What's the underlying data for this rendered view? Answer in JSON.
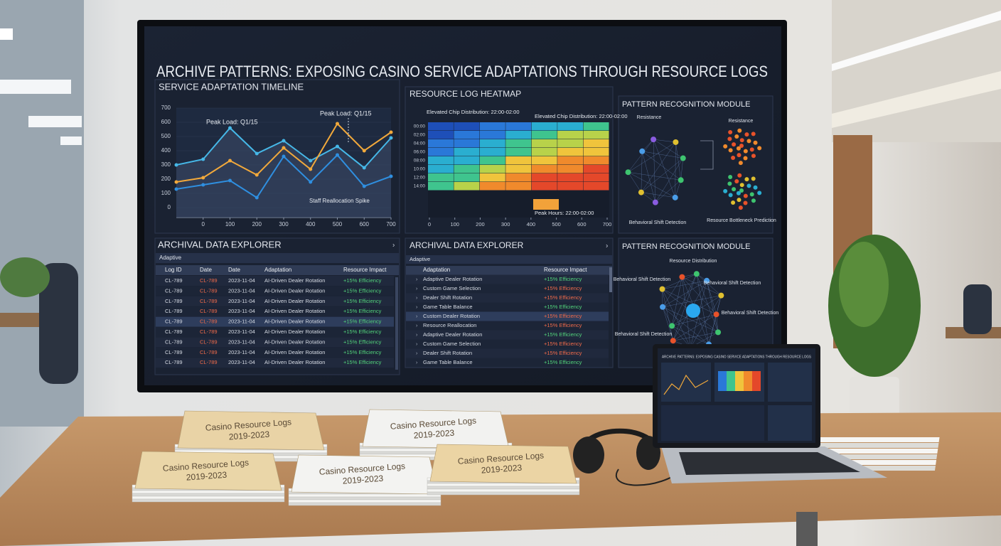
{
  "screen": {
    "title": "ARCHIVE PATTERNS: EXPOSING CASINO SERVICE ADAPTATIONS THROUGH RESOURCE LOGS",
    "timeline": {
      "type": "line",
      "title": "SERVICE ADAPTATION TIMELINE",
      "x": [
        -100,
        0,
        100,
        200,
        300,
        400,
        500,
        600,
        700
      ],
      "xlim": [
        -100,
        700
      ],
      "xticks": [
        0,
        100,
        200,
        300,
        400,
        500,
        600,
        700
      ],
      "ylim": [
        0,
        700
      ],
      "yticks": [
        0,
        100,
        200,
        300,
        400,
        500,
        600,
        700
      ],
      "series": [
        {
          "color": "#46b8e8",
          "values": [
            300,
            340,
            560,
            380,
            470,
            330,
            430,
            280,
            490
          ]
        },
        {
          "color": "#f2a93b",
          "values": [
            180,
            210,
            330,
            230,
            420,
            270,
            590,
            400,
            530
          ]
        },
        {
          "color": "#2f8fe0",
          "values": [
            130,
            160,
            190,
            70,
            360,
            180,
            370,
            150,
            220
          ]
        }
      ],
      "annotations": [
        "Peak Load: Q1/15",
        "Peak Load: Q1/15",
        "Staff Reallocation Spike"
      ]
    },
    "heatmap": {
      "type": "heatmap",
      "title": "RESOURCE LOG HEATMAP",
      "annotations": [
        "Elevated Chip Distribution: 22:00-02:00",
        "Elevated Chip Distribution: 22:00-02:00"
      ],
      "callout": "Peak Hours: 22:00-02:00",
      "colors": [
        "#1e4fb8",
        "#2a78d8",
        "#2aaed0",
        "#3fc48e",
        "#b8d24a",
        "#f0c43c",
        "#f08a2c",
        "#e4482a"
      ],
      "rows": [
        "00:00",
        "02:00",
        "04:00",
        "06:00",
        "08:00",
        "10:00",
        "12:00",
        "14:00"
      ],
      "xlim": [
        0,
        700
      ],
      "xticks": [
        0,
        100,
        200,
        300,
        400,
        500,
        600,
        700
      ],
      "values": [
        [
          0,
          0,
          1,
          1,
          2,
          2,
          3
        ],
        [
          0,
          1,
          1,
          2,
          3,
          4,
          4
        ],
        [
          1,
          1,
          2,
          3,
          4,
          4,
          5
        ],
        [
          1,
          2,
          2,
          3,
          4,
          5,
          5
        ],
        [
          2,
          2,
          3,
          5,
          5,
          6,
          6
        ],
        [
          2,
          3,
          4,
          5,
          6,
          6,
          7
        ],
        [
          3,
          3,
          5,
          6,
          7,
          7,
          7
        ],
        [
          3,
          4,
          6,
          6,
          7,
          7,
          7
        ]
      ]
    },
    "pattern": {
      "title": "PATTERN RECOGNITION MODULE",
      "labels": [
        "Resistance",
        "Resistance",
        "Behavioral Shift Detection",
        "Resource Bottleneck Prediction"
      ]
    },
    "explorer1": {
      "title": "ARCHIVAL DATA EXPLORER",
      "subtitle": "Adaptive",
      "headers": [
        "Log ID",
        "Date",
        "Date",
        "Adaptation",
        "Resource Impact"
      ],
      "rows": [
        [
          "CL-789",
          "CL-789",
          "2023-11-04",
          "AI-Driven Dealer Rotation",
          "+15% Efficiency"
        ],
        [
          "CL-789",
          "CL-789",
          "2023-11-04",
          "AI-Driven Dealer Rotation",
          "+15% Efficiency"
        ],
        [
          "CL-789",
          "CL-789",
          "2023-11-04",
          "AI-Driven Dealer Rotation",
          "+15% Efficiency"
        ],
        [
          "CL-789",
          "CL-789",
          "2023-11-04",
          "AI-Driven Dealer Rotation",
          "+15% Efficiency"
        ],
        [
          "CL-789",
          "CL-789",
          "2023-11-04",
          "AI-Driven Dealer Rotation",
          "+15% Efficiency"
        ],
        [
          "CL-789",
          "CL-789",
          "2023-11-04",
          "AI-Driven Dealer Rotation",
          "+15% Efficiency"
        ],
        [
          "CL-789",
          "CL-789",
          "2023-11-04",
          "AI-Driven Dealer Rotation",
          "+15% Efficiency"
        ],
        [
          "CL-789",
          "CL-789",
          "2023-11-04",
          "AI-Driven Dealer Rotation",
          "+15% Efficiency"
        ],
        [
          "CL-789",
          "CL-789",
          "2023-11-04",
          "AI-Driven Dealer Rotation",
          "+15% Efficiency"
        ]
      ]
    },
    "explorer2": {
      "title": "ARCHIVAL DATA EXPLORER",
      "subtitle": "Adaptive",
      "headers": [
        "Adaptation",
        "Resource Impact"
      ],
      "rows": [
        [
          "Adaptive Dealer Rotation",
          "+15% Efficiency"
        ],
        [
          "Custom Game Selection",
          "+15% Efficiency"
        ],
        [
          "Dealer Shift Rotation",
          "+15% Efficiency"
        ],
        [
          "Game Table Balance",
          "+15% Efficiency"
        ],
        [
          "Custom Dealer Rotation",
          "+15% Efficiency"
        ],
        [
          "Resource Reallocation",
          "+15% Efficiency"
        ],
        [
          "Adaptive Dealer Rotation",
          "+15% Efficiency"
        ],
        [
          "Custom Game Selection",
          "+15% Efficiency"
        ],
        [
          "Dealer Shift Rotation",
          "+15% Efficiency"
        ],
        [
          "Game Table Balance",
          "+15% Efficiency"
        ]
      ]
    },
    "pattern2": {
      "title": "PATTERN RECOGNITION MODULE",
      "labels": [
        "Resource Distribution",
        "Behavioral Shift Detection",
        "Behavioral Shift Detection",
        "Behavioral Shift Detection",
        "Behavioral Shift Detection"
      ]
    }
  },
  "laptop": {
    "title": "ARCHIVE PATTERNS: EXPOSING CASINO SERVICE ADAPTATIONS THROUGH RESOURCE LOGS"
  },
  "binders": [
    {
      "line1": "Casino Resource Logs",
      "line2": "2019-2023"
    },
    {
      "line1": "Casino Resource Logs",
      "line2": "2019-2023"
    },
    {
      "line1": "Casino Resource Logs",
      "line2": "2019-2023"
    },
    {
      "line1": "Casino Resource Logs",
      "line2": "2019-2023"
    },
    {
      "line1": "Casino Resource Logs",
      "line2": "2019-2023"
    }
  ]
}
